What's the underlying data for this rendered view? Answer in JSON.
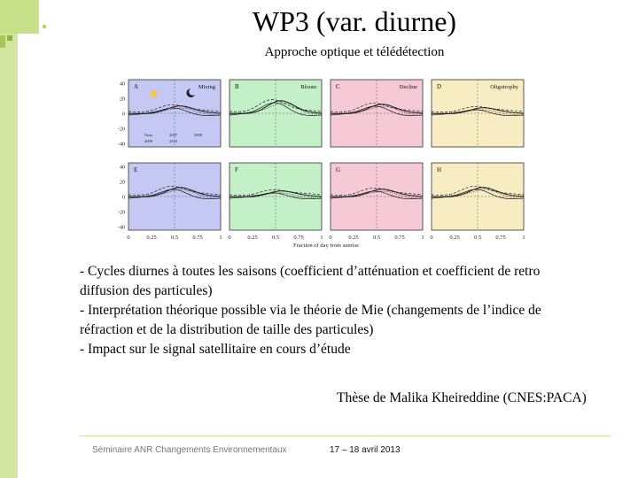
{
  "slide": {
    "title": "WP3 (var. diurne)",
    "subtitle": "Approche optique et télédétection",
    "bullets": [
      "- Cycles diurnes à toutes les saisons (coefficient d’atténuation et coefficient de retro",
      "diffusion des particules)",
      "- Interprétation théorique possible via le théorie de Mie (changements de l’indice de",
      "réfraction et de la distribution de taille des particules)",
      "- Impact sur le signal satellitaire en cours d’étude"
    ],
    "credit": "Thèse de Malika Kheireddine (CNES:PACA)",
    "footer_left": "Séminaire ANR Changements Environnementaux",
    "footer_right": "17 – 18 avril 2013"
  },
  "figure": {
    "xlabel": "Fraction of day from sunrise",
    "xticks": [
      "0",
      "0.25",
      "0.5",
      "0.75",
      "1"
    ],
    "yticks_top": [
      "40",
      "20",
      "0",
      "-20",
      "-40"
    ],
    "yticks_bottom": [
      "40",
      "20",
      "0",
      "-20",
      "-40"
    ],
    "panels": [
      {
        "letter": "A",
        "label": "Mixing",
        "color": "#c6c8f4"
      },
      {
        "letter": "B",
        "label": "Bloom",
        "color": "#c4f0c8"
      },
      {
        "letter": "C",
        "label": "Decline",
        "color": "#f6c9d6"
      },
      {
        "letter": "D",
        "label": "Oligotrophy",
        "color": "#f8edc2"
      },
      {
        "letter": "E",
        "label": "",
        "color": "#c6c8f4"
      },
      {
        "letter": "F",
        "label": "",
        "color": "#c4f0c8"
      },
      {
        "letter": "G",
        "label": "",
        "color": "#f6c9d6"
      },
      {
        "letter": "H",
        "label": "",
        "color": "#f8edc2"
      }
    ],
    "legend_a": [
      "Num",
      "2007",
      "2008",
      "2009",
      "2010"
    ]
  }
}
